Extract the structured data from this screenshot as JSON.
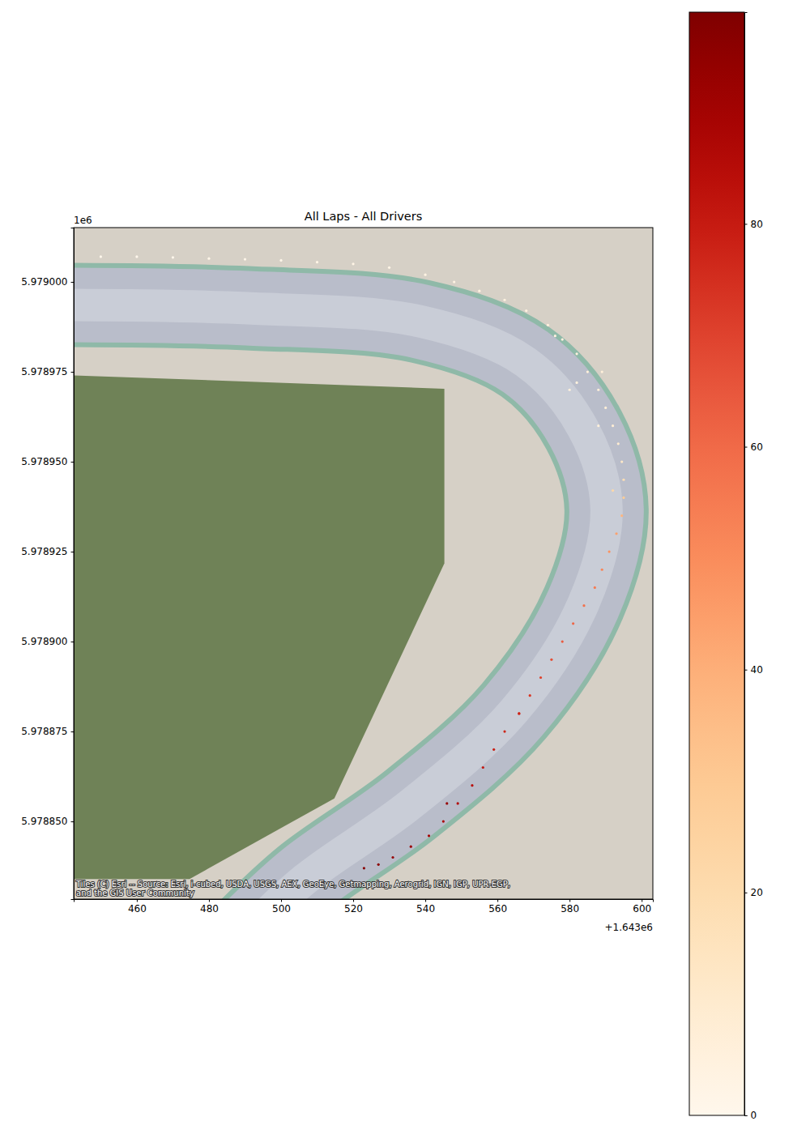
{
  "chart_data": {
    "type": "scatter",
    "title": "All Laps - All Drivers",
    "x_offset_label": "+1.643e6",
    "y_offset_label": "1e6",
    "attribution": [
      "Tiles (C) Esri -- Source: Esri, i-cubed, USDA, USGS, AEX, GeoEye, Getmapping, Aerogrid, IGN, IGP, UPR-EGP,",
      "and the GIS User Community"
    ],
    "color": "OrRd",
    "xlim": [
      1643442.5,
      1643603.1
    ],
    "ylim": [
      5978828.4,
      5979015.1
    ],
    "xticks": [
      {
        "value": 1643460,
        "label": "460"
      },
      {
        "value": 1643480,
        "label": "480"
      },
      {
        "value": 1643500,
        "label": "500"
      },
      {
        "value": 1643520,
        "label": "520"
      },
      {
        "value": 1643540,
        "label": "540"
      },
      {
        "value": 1643560,
        "label": "560"
      },
      {
        "value": 1643580,
        "label": "580"
      },
      {
        "value": 1643600,
        "label": "600"
      }
    ],
    "yticks": [
      {
        "value": 5978850,
        "label": "5.978850"
      },
      {
        "value": 5978875,
        "label": "5.978875"
      },
      {
        "value": 5978900,
        "label": "5.978900"
      },
      {
        "value": 5978925,
        "label": "5.978925"
      },
      {
        "value": 5978950,
        "label": "5.978950"
      },
      {
        "value": 5978975,
        "label": "5.978975"
      },
      {
        "value": 5979000,
        "label": "5.979000"
      }
    ],
    "colorbar": {
      "range": [
        0,
        99
      ],
      "ticks": [
        0,
        20,
        40,
        60,
        80
      ]
    },
    "x": [
      1643450,
      1643460,
      1643470,
      1643480,
      1643490,
      1643500,
      1643510,
      1643520,
      1643530,
      1643540,
      1643548,
      1643555,
      1643562,
      1643568,
      1643574,
      1643578,
      1643582,
      1643585,
      1643588,
      1643590,
      1643592,
      1643593.5,
      1643594.5,
      1643595,
      1643595,
      1643594.5,
      1643593,
      1643591,
      1643589,
      1643587,
      1643584,
      1643581,
      1643578,
      1643575,
      1643572,
      1643569,
      1643566,
      1643562,
      1643559,
      1643556,
      1643553,
      1643549,
      1643545,
      1643541,
      1643536,
      1643531,
      1643527,
      1643523,
      1643582,
      1643589,
      1643576,
      1643588,
      1643592,
      1643546,
      1643566,
      1643580
    ],
    "values": [
      5979007,
      5979007,
      5979006.8,
      5979006.5,
      5979006.3,
      5979006,
      5979005.5,
      5979005,
      5979004,
      5979002,
      5979000,
      5978997.5,
      5978995,
      5978992,
      5978988,
      5978984,
      5978980,
      5978975,
      5978970,
      5978965,
      5978960,
      5978955,
      5978950,
      5978945,
      5978940,
      5978935,
      5978930,
      5978925,
      5978920,
      5978915,
      5978910,
      5978905,
      5978900,
      5978895,
      5978890,
      5978885,
      5978880,
      5978875,
      5978870,
      5978865,
      5978860,
      5978855,
      5978850,
      5978846,
      5978843,
      5978840,
      5978838,
      5978837,
      5978972,
      5978975,
      5978985,
      5978960,
      5978942,
      5978855,
      5978880,
      5978970
    ],
    "color_values": [
      0,
      0,
      0,
      1,
      1,
      1,
      2,
      2,
      2,
      3,
      3,
      4,
      4,
      4,
      5,
      5,
      5,
      6,
      6,
      7,
      8,
      9,
      12,
      18,
      28,
      38,
      44,
      48,
      52,
      55,
      58,
      61,
      64,
      67,
      70,
      73,
      75,
      77,
      79,
      81,
      84,
      86,
      88,
      90,
      92,
      94,
      96,
      97,
      5,
      6,
      4,
      6,
      22,
      93,
      78,
      5
    ]
  }
}
